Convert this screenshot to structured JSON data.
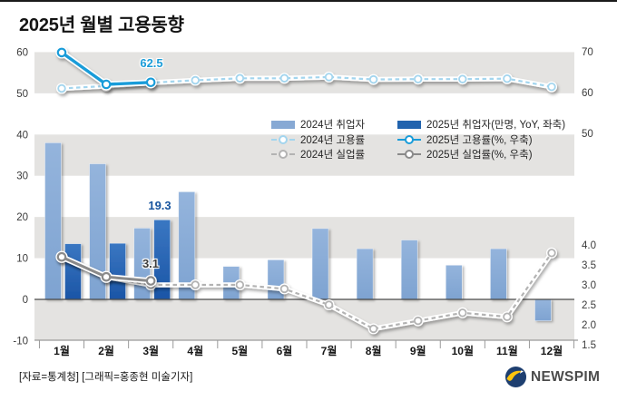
{
  "title": "2025년 월별 고용동향",
  "footer": {
    "source": "[자료=통계청] [그래픽=홍종현 미술기자]",
    "logo_text": "NEWSPIM"
  },
  "annotations": {
    "emp_rate_2025_mar": "62.5",
    "employed_2025_mar": "19.3",
    "unemp_rate_2025_mar": "3.1"
  },
  "colors": {
    "band": "#e4e3e1",
    "bar_2024_top": "#94b4dc",
    "bar_2024_bottom": "#7ea3d1",
    "bar_2025_top": "#3a77c2",
    "bar_2025_bottom": "#1b55a6",
    "employed_2024": "#87a9d4",
    "employed_2025": "#2163ae",
    "emp_rate_2024": "#a3d5ee",
    "emp_rate_2025": "#199cd9",
    "unemp_rate_2024": "#b3b3b3",
    "unemp_rate_2025": "#8a8a8a",
    "zero_line": "#4a4a4a",
    "axis_line": "#9a9a9a",
    "tick_text": "#3b3b3b",
    "month_text": "#191919",
    "logo_navy": "#1e3f70",
    "logo_yellow": "#fcc40d"
  },
  "chart_data": {
    "type": "bar+line combo",
    "categories": [
      "1월",
      "2월",
      "3월",
      "4월",
      "5월",
      "6월",
      "7월",
      "8월",
      "9월",
      "10월",
      "11월",
      "12월"
    ],
    "series": [
      {
        "id": "employed_2024",
        "label": "2024년 취업자",
        "kind": "bar",
        "axis": "left",
        "unit": "만명",
        "values": [
          38.0,
          32.9,
          17.3,
          26.1,
          8.0,
          9.6,
          17.2,
          12.3,
          14.4,
          8.3,
          12.3,
          -5.2
        ]
      },
      {
        "id": "employed_2025",
        "label": "2025년 취업자(만명, YoY, 좌축)",
        "kind": "bar",
        "axis": "left",
        "unit": "만명",
        "values": [
          13.5,
          13.6,
          19.3
        ]
      },
      {
        "id": "emp_rate_2024",
        "label": "2024년 고용률",
        "kind": "line",
        "style": "dashed",
        "axis": "right_top",
        "unit": "%",
        "values": [
          61.0,
          61.6,
          62.4,
          63.0,
          63.5,
          63.5,
          63.8,
          63.2,
          63.3,
          63.3,
          63.4,
          61.4
        ]
      },
      {
        "id": "emp_rate_2025",
        "label": "2025년 고용률(%, 우축)",
        "kind": "line",
        "style": "solid",
        "axis": "right_top",
        "unit": "%",
        "values": [
          69.8,
          62.0,
          62.5
        ]
      },
      {
        "id": "unemp_rate_2024",
        "label": "2024년 실업률",
        "kind": "line",
        "style": "dashed",
        "axis": "right_bottom",
        "unit": "%",
        "values": [
          3.7,
          3.2,
          3.0,
          3.0,
          3.0,
          2.9,
          2.5,
          1.9,
          2.1,
          2.3,
          2.2,
          3.8
        ]
      },
      {
        "id": "unemp_rate_2025",
        "label": "2025년 실업률(%, 우축)",
        "kind": "line",
        "style": "solid",
        "axis": "right_bottom",
        "unit": "%",
        "values": [
          3.7,
          3.2,
          3.1
        ]
      }
    ],
    "axes": {
      "left": {
        "ticks": [
          "60",
          "50",
          "40",
          "30",
          "20",
          "10",
          "0",
          "-10"
        ],
        "range": [
          -10,
          60
        ]
      },
      "right_top": {
        "ticks": [
          "70",
          "60",
          "50"
        ],
        "range": [
          50,
          70
        ]
      },
      "right_bottom": {
        "ticks": [
          "4.0",
          "3.5",
          "3.0",
          "2.5",
          "2.0",
          "1.5"
        ],
        "range": [
          1.5,
          4.0
        ]
      }
    },
    "legend_position": "top-right inside plot",
    "grid": "alternating horizontal gray bands"
  }
}
